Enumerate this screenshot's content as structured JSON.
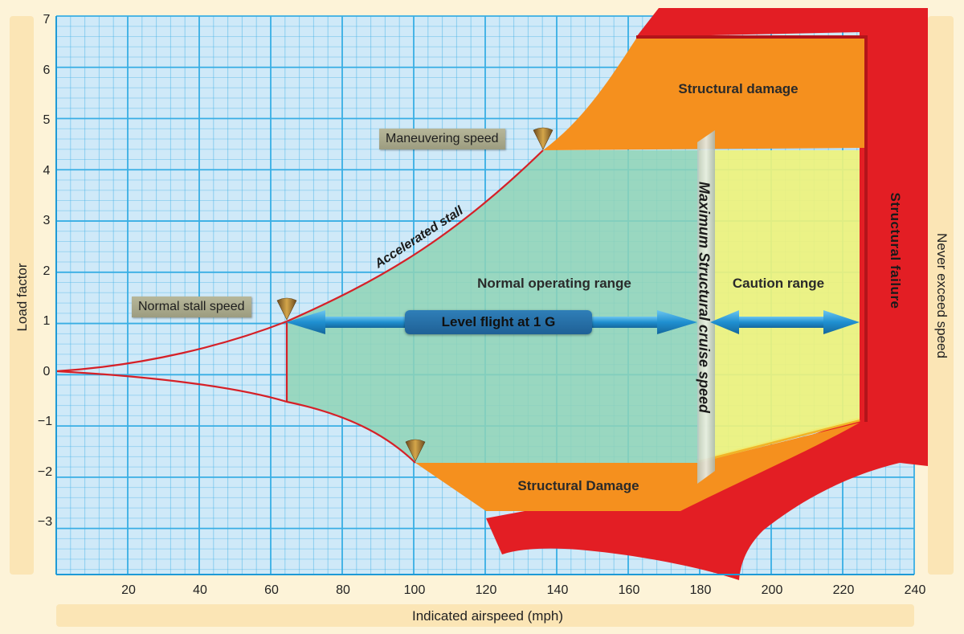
{
  "axes": {
    "xlabel": "Indicated airspeed (mph)",
    "ylabel": "Load factor",
    "right_label": "Never exceed speed",
    "x_ticks": [
      "20",
      "40",
      "60",
      "80",
      "100",
      "120",
      "140",
      "160",
      "180",
      "200",
      "220",
      "240"
    ],
    "y_ticks": [
      "7",
      "6",
      "5",
      "4",
      "3",
      "2",
      "1",
      "0",
      "−1",
      "−2",
      "−3"
    ]
  },
  "regions": {
    "structural_damage_top": "Structural damage",
    "structural_damage_bottom": "Structural Damage",
    "normal_operating": "Normal operating range",
    "caution": "Caution range",
    "structural_failure": "Structural  failure"
  },
  "callouts": {
    "maneuvering_speed": "Maneuvering speed",
    "normal_stall_speed": "Normal stall speed"
  },
  "labels": {
    "accelerated_stall": "Accelerated stall",
    "level_flight": "Level flight at 1 G",
    "max_cruise": "Maximum Structural cruise speed"
  },
  "colors": {
    "grid_bg": "#cfe9f8",
    "grid_line": "#38aee4",
    "red": "#e31e24",
    "orange": "#f5901e",
    "green": "#8fd3b6",
    "yellow": "#eef27c",
    "arrow_blue": "#1f8fd0"
  },
  "data": {
    "x_range": [
      0,
      240
    ],
    "y_range": [
      -3.9,
      7
    ],
    "maneuvering_speed": 136,
    "normal_stall_speed": 64,
    "max_structural_cruise_speed": 180,
    "never_exceed_speed": 225,
    "positive_limit_load": 4.4,
    "negative_limit_load": -1.76
  }
}
